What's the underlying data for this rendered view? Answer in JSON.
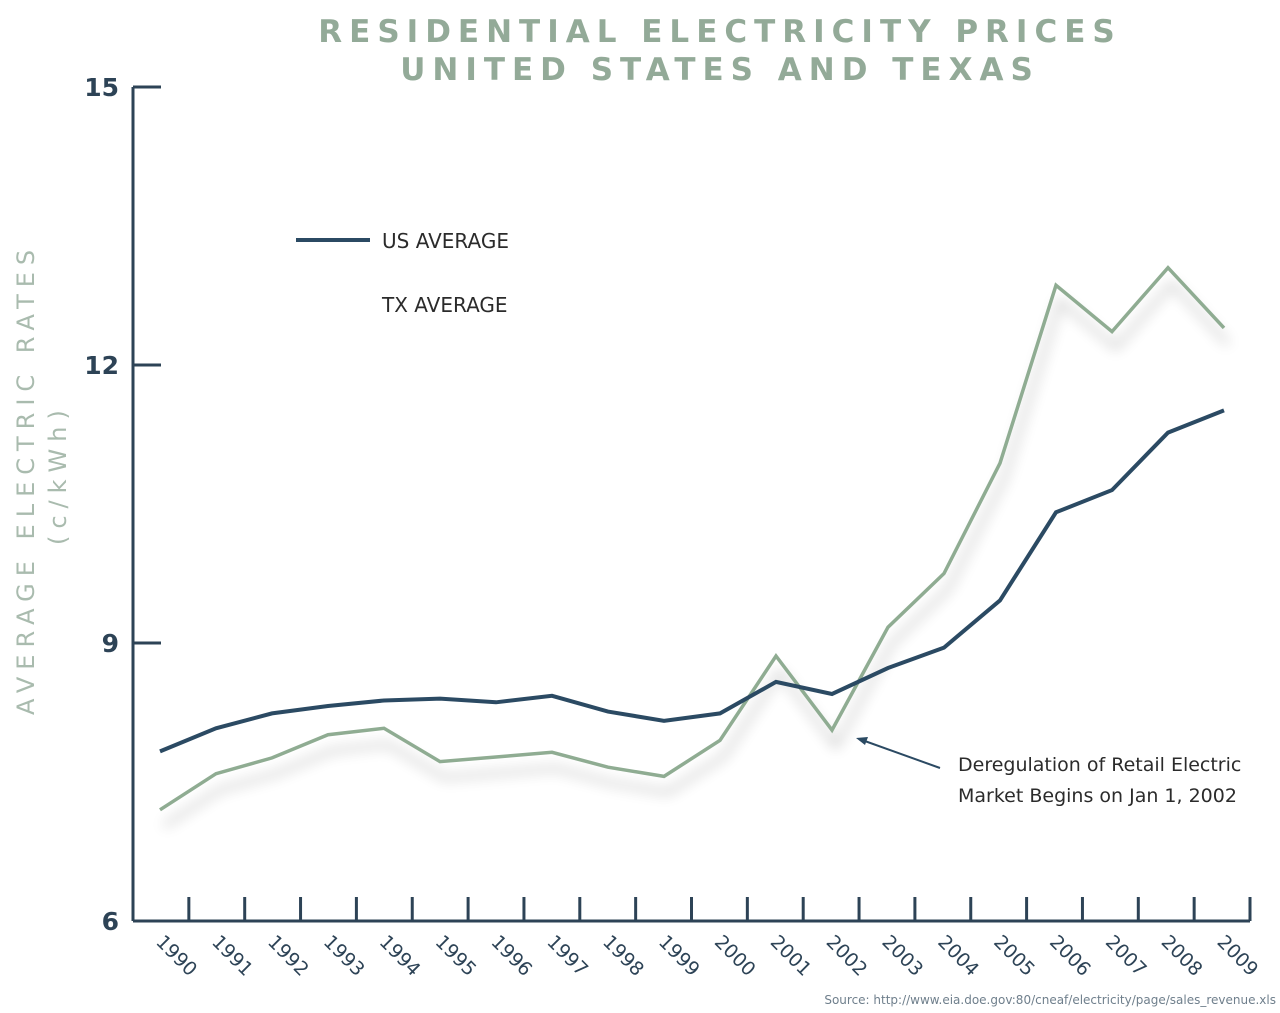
{
  "chart_data": {
    "type": "line",
    "title": "RESIDENTIAL ELECTRICITY PRICES",
    "subtitle": "UNITED STATES AND TEXAS",
    "xlabel": "",
    "ylabel": "AVERAGE ELECTRIC RATES",
    "ylabel_units": "(c/kWh)",
    "ylim": [
      6,
      15
    ],
    "yticks": [
      "15",
      "12",
      "9",
      "6"
    ],
    "ytick_values": [
      15,
      12,
      9,
      6
    ],
    "x": [
      "1990",
      "1991",
      "1992",
      "1993",
      "1994",
      "1995",
      "1996",
      "1997",
      "1998",
      "1999",
      "2000",
      "2001",
      "2002",
      "2003",
      "2004",
      "2005",
      "2006",
      "2007",
      "2008",
      "2009"
    ],
    "grid": false,
    "legend_position": "upper-left",
    "series": [
      {
        "name": "US AVERAGE",
        "color": "#2b4a63",
        "values": [
          7.83,
          8.08,
          8.24,
          8.32,
          8.38,
          8.4,
          8.36,
          8.43,
          8.26,
          8.16,
          8.24,
          8.58,
          8.45,
          8.73,
          8.95,
          9.46,
          10.41,
          10.65,
          11.27,
          11.51
        ]
      },
      {
        "name": "TX AVERAGE",
        "color": "#8fac92",
        "values": [
          7.2,
          7.59,
          7.76,
          8.01,
          8.08,
          7.72,
          7.77,
          7.82,
          7.66,
          7.56,
          7.95,
          8.86,
          8.06,
          9.17,
          9.75,
          10.94,
          12.86,
          12.36,
          13.05,
          12.4
        ]
      }
    ],
    "annotations": [
      {
        "text_line1": "Deregulation of Retail Electric",
        "text_line2": "Market Begins on Jan 1, 2002",
        "points_to_x": "2002",
        "points_to_series": "TX AVERAGE"
      }
    ],
    "source": "Source: http://www.eia.doe.gov:80/cneaf/electricity/page/sales_revenue.xls"
  },
  "colors": {
    "axis": "#2d4356",
    "title": "#93aa98",
    "ylabel": "#a9bbae"
  }
}
